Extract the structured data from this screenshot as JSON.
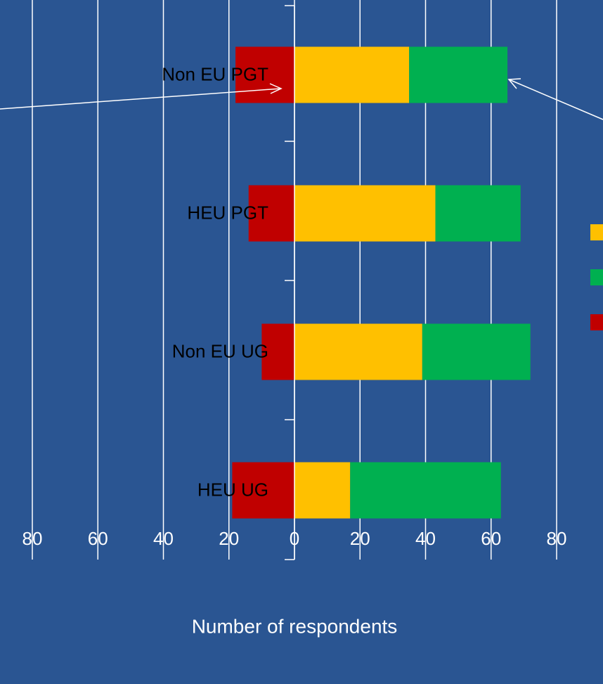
{
  "chart_data": {
    "type": "bar",
    "orientation": "horizontal",
    "stacked": true,
    "categories": [
      "Non EU PGT",
      "HEU PGT",
      "Non EU UG",
      "HEU UG"
    ],
    "series": [
      {
        "color": "#c00000",
        "values": [
          -18,
          -14,
          -10,
          -19
        ]
      },
      {
        "color": "#ffc000",
        "values": [
          35,
          43,
          39,
          17
        ]
      },
      {
        "color": "#00b050",
        "values": [
          30,
          26,
          33,
          46
        ]
      }
    ],
    "x_label": "Number of respondents",
    "xlim": [
      -80,
      80
    ],
    "xticks": [
      {
        "value": -80,
        "label": "80"
      },
      {
        "value": -60,
        "label": "60"
      },
      {
        "value": -40,
        "label": "40"
      },
      {
        "value": -20,
        "label": "20"
      },
      0,
      20,
      40,
      60,
      80
    ],
    "grid": true
  }
}
